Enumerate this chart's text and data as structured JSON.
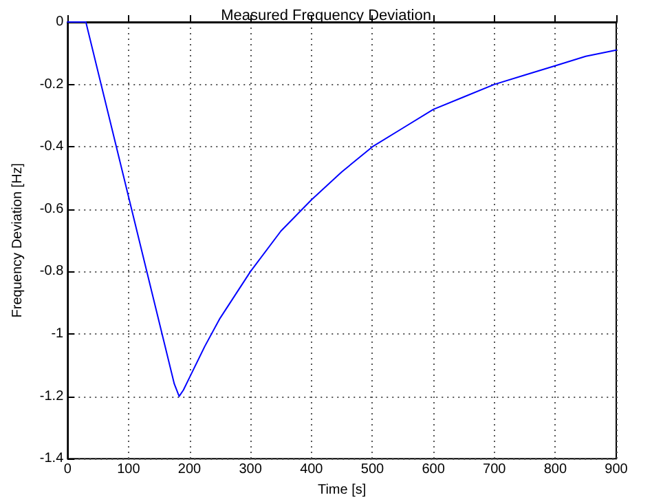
{
  "chart_data": {
    "type": "line",
    "title": "Measured Frequency Deviation",
    "xlabel": "Time [s]",
    "ylabel": "Frequency Deviation [Hz]",
    "x": [
      0,
      30,
      60,
      100,
      140,
      175,
      183,
      190,
      200,
      225,
      250,
      300,
      350,
      400,
      450,
      500,
      550,
      600,
      650,
      700,
      750,
      800,
      850,
      900
    ],
    "series": [
      {
        "color": "#0000ff",
        "values": [
          0,
          0,
          -0.24,
          -0.56,
          -0.88,
          -1.16,
          -1.2,
          -1.18,
          -1.14,
          -1.04,
          -0.95,
          -0.8,
          -0.67,
          -0.57,
          -0.48,
          -0.4,
          -0.34,
          -0.28,
          -0.24,
          -0.2,
          -0.17,
          -0.14,
          -0.11,
          -0.09
        ]
      }
    ],
    "xlim": [
      0,
      900
    ],
    "xticks": [
      0,
      100,
      200,
      300,
      400,
      500,
      600,
      700,
      800,
      900
    ],
    "ylim": [
      -1.4,
      0
    ],
    "yticks": [
      -1.4,
      -1.2,
      -1,
      -0.8,
      -0.6,
      -0.4,
      -0.2,
      0
    ],
    "grid": true,
    "marker": "none",
    "line_style": "solid"
  }
}
